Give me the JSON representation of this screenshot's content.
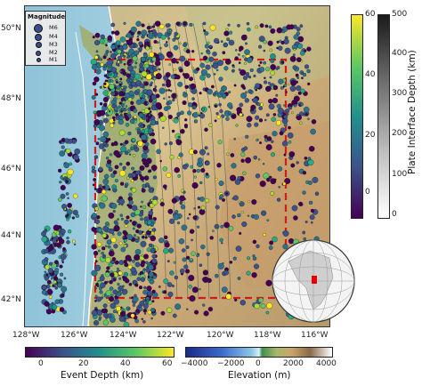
{
  "map": {
    "lon_labels": [
      "128°W",
      "126°W",
      "124°W",
      "122°W",
      "120°W",
      "118°W",
      "116°W"
    ],
    "lat_labels": [
      "50°N",
      "48°N",
      "46°N",
      "44°N",
      "42°N"
    ],
    "legend": {
      "title": "Magnitude",
      "items": [
        "M6",
        "M4",
        "M3",
        "M2",
        "M1"
      ]
    },
    "region_box_color": "#d01c1c",
    "event_dot_color": "#3b4c8c",
    "globe_marker_color": "#e00000"
  },
  "colorbars": {
    "event_depth": {
      "title": "Event Depth (km)",
      "ticks": [
        "0",
        "20",
        "40",
        "60"
      ]
    },
    "elevation": {
      "title": "Elevation (m)",
      "ticks": [
        "−4000",
        "−2000",
        "0",
        "2000",
        "4000"
      ]
    },
    "depth_right": {
      "ticks": [
        "60",
        "40",
        "20",
        "0"
      ]
    },
    "plate_interface": {
      "title": "Plate Interface Depth (km)",
      "ticks": [
        "500",
        "400",
        "300",
        "200",
        "100",
        "0"
      ]
    }
  }
}
